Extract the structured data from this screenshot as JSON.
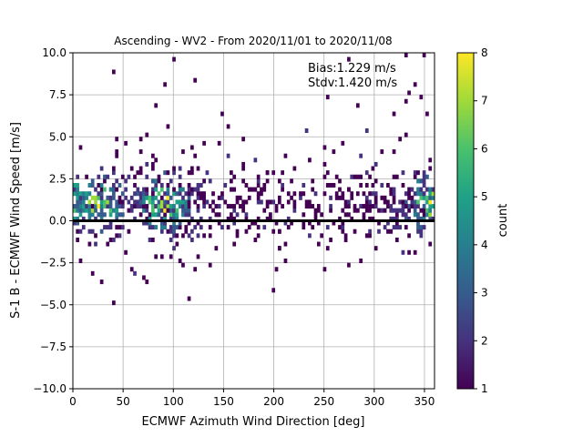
{
  "chart_data": {
    "type": "heatmap",
    "title": "Ascending - WV2 - From 2020/11/01 to 2020/11/08",
    "xlabel": "ECMWF Azimuth Wind Direction [deg]",
    "ylabel": "S-1 B - ECMWF Wind Speed [m/s]",
    "xlim": [
      0,
      360
    ],
    "ylim": [
      -10,
      10
    ],
    "xticks": [
      0,
      50,
      100,
      150,
      200,
      250,
      300,
      350
    ],
    "yticks": [
      -10.0,
      -7.5,
      -5.0,
      -2.5,
      0.0,
      2.5,
      5.0,
      7.5,
      10.0
    ],
    "grid": true,
    "annotation": [
      "Bias:1.229 m/s",
      "Stdv:1.420 m/s"
    ],
    "zero_line_y": 0,
    "colorbar": {
      "label": "count",
      "range": [
        1,
        8
      ],
      "ticks": [
        1,
        2,
        3,
        4,
        5,
        6,
        7,
        8
      ],
      "colormap": [
        "#440154",
        "#46327e",
        "#365c8d",
        "#277f8e",
        "#1fa187",
        "#4ac16d",
        "#a0da39",
        "#fde725"
      ]
    },
    "bin_size": {
      "x": 3,
      "y": 0.25
    },
    "density_profile": {
      "peak_x_deg": [
        25,
        90,
        355
      ],
      "core_y_range": [
        -0.5,
        2.5
      ],
      "max_count": 8
    }
  }
}
